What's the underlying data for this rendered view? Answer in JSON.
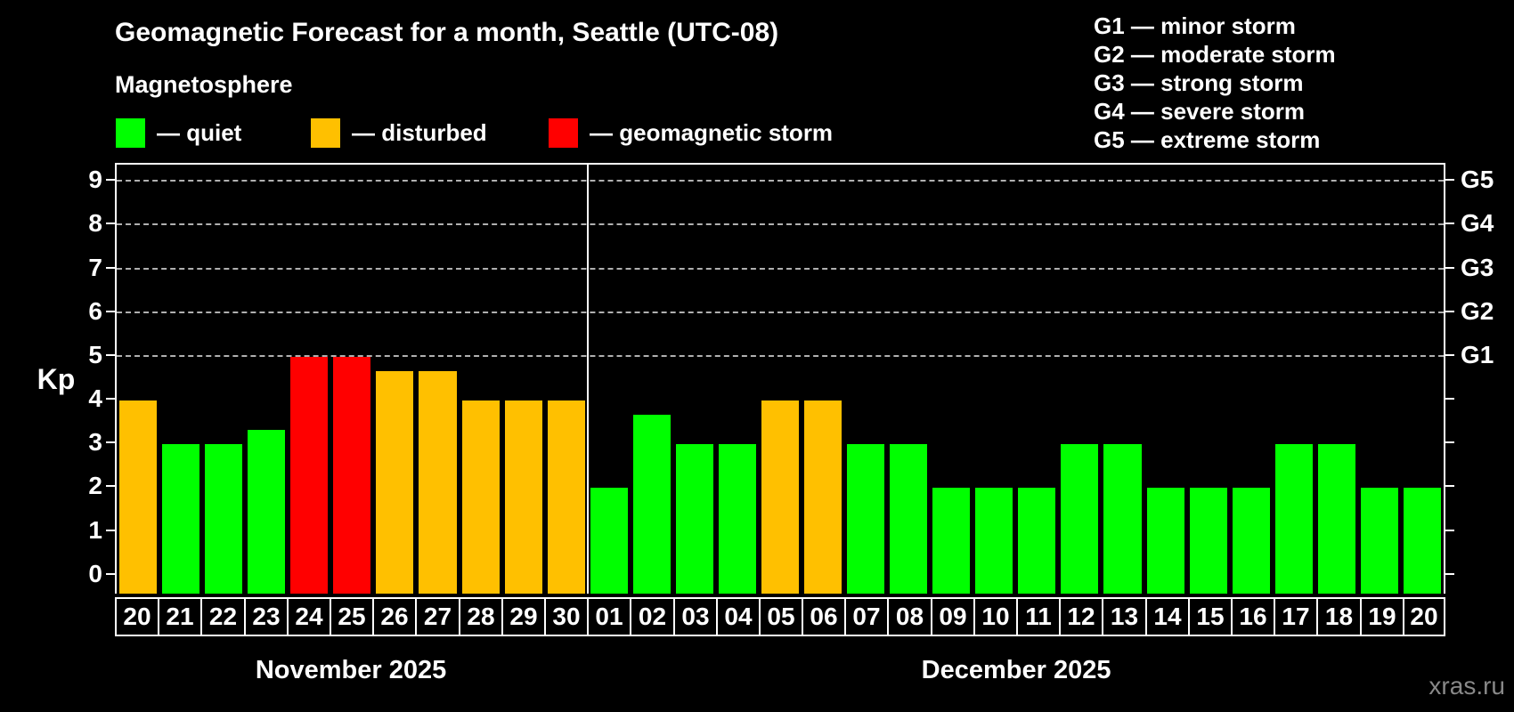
{
  "header": {
    "title": "Geomagnetic Forecast for a month, Seattle (UTC-08)"
  },
  "magnetosphere_legend": {
    "subtitle": "Magnetosphere",
    "items": [
      {
        "key": "quiet",
        "label": "— quiet",
        "color": "#00ff00"
      },
      {
        "key": "disturbed",
        "label": "— disturbed",
        "color": "#ffc000"
      },
      {
        "key": "storm",
        "label": "— geomagnetic storm",
        "color": "#ff0000"
      }
    ]
  },
  "g_scale_legend": {
    "items": [
      "G1 — minor storm",
      "G2 — moderate storm",
      "G3 — strong storm",
      "G4 — severe storm",
      "G5 — extreme storm"
    ]
  },
  "watermark": "xras.ru",
  "chart_data": {
    "type": "bar",
    "title": "Geomagnetic Forecast for a month, Seattle (UTC-08)",
    "ylabel": "Kp",
    "y_ticks": [
      0,
      1,
      2,
      3,
      4,
      5,
      6,
      7,
      8,
      9
    ],
    "ylim": [
      -0.45,
      9.39
    ],
    "grid": "horizontal-dashed-at-storm-levels",
    "legend_position": "top",
    "gridlines": [
      {
        "kp": 5,
        "g": "G1"
      },
      {
        "kp": 6,
        "g": "G2"
      },
      {
        "kp": 7,
        "g": "G3"
      },
      {
        "kp": 8,
        "g": "G4"
      },
      {
        "kp": 9,
        "g": "G5"
      }
    ],
    "status_colors": {
      "quiet": "#00ff00",
      "disturbed": "#ffc000",
      "storm": "#ff0000"
    },
    "months": [
      {
        "label": "November 2025",
        "days": [
          {
            "date": "20",
            "kp": 4,
            "status": "disturbed"
          },
          {
            "date": "21",
            "kp": 3,
            "status": "quiet"
          },
          {
            "date": "22",
            "kp": 3,
            "status": "quiet"
          },
          {
            "date": "23",
            "kp": 3.33,
            "status": "quiet"
          },
          {
            "date": "24",
            "kp": 5,
            "status": "storm"
          },
          {
            "date": "25",
            "kp": 5,
            "status": "storm"
          },
          {
            "date": "26",
            "kp": 4.67,
            "status": "disturbed"
          },
          {
            "date": "27",
            "kp": 4.67,
            "status": "disturbed"
          },
          {
            "date": "28",
            "kp": 4,
            "status": "disturbed"
          },
          {
            "date": "29",
            "kp": 4,
            "status": "disturbed"
          },
          {
            "date": "30",
            "kp": 4,
            "status": "disturbed"
          }
        ]
      },
      {
        "label": "December 2025",
        "days": [
          {
            "date": "01",
            "kp": 2,
            "status": "quiet"
          },
          {
            "date": "02",
            "kp": 3.67,
            "status": "quiet"
          },
          {
            "date": "03",
            "kp": 3,
            "status": "quiet"
          },
          {
            "date": "04",
            "kp": 3,
            "status": "quiet"
          },
          {
            "date": "05",
            "kp": 4,
            "status": "disturbed"
          },
          {
            "date": "06",
            "kp": 4,
            "status": "disturbed"
          },
          {
            "date": "07",
            "kp": 3,
            "status": "quiet"
          },
          {
            "date": "08",
            "kp": 3,
            "status": "quiet"
          },
          {
            "date": "09",
            "kp": 2,
            "status": "quiet"
          },
          {
            "date": "10",
            "kp": 2,
            "status": "quiet"
          },
          {
            "date": "11",
            "kp": 2,
            "status": "quiet"
          },
          {
            "date": "12",
            "kp": 3,
            "status": "quiet"
          },
          {
            "date": "13",
            "kp": 3,
            "status": "quiet"
          },
          {
            "date": "14",
            "kp": 2,
            "status": "quiet"
          },
          {
            "date": "15",
            "kp": 2,
            "status": "quiet"
          },
          {
            "date": "16",
            "kp": 2,
            "status": "quiet"
          },
          {
            "date": "17",
            "kp": 3,
            "status": "quiet"
          },
          {
            "date": "18",
            "kp": 3,
            "status": "quiet"
          },
          {
            "date": "19",
            "kp": 2,
            "status": "quiet"
          },
          {
            "date": "20",
            "kp": 2,
            "status": "quiet"
          }
        ]
      }
    ]
  }
}
